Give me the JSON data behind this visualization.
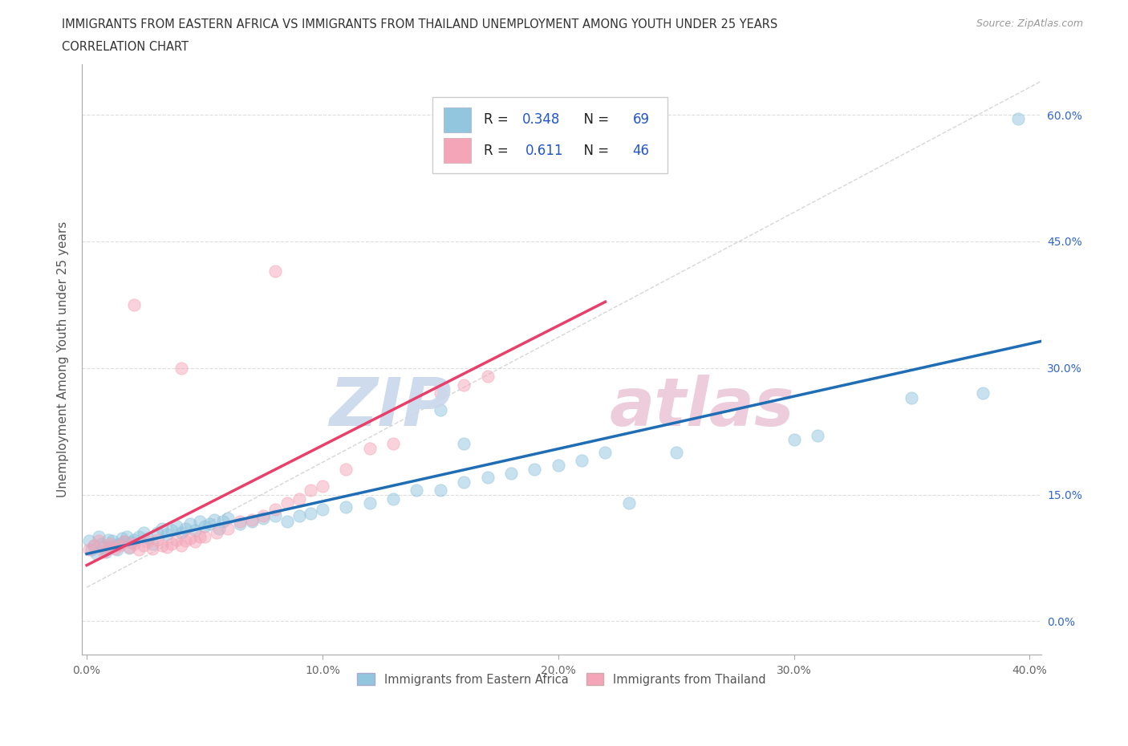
{
  "title_line1": "IMMIGRANTS FROM EASTERN AFRICA VS IMMIGRANTS FROM THAILAND UNEMPLOYMENT AMONG YOUTH UNDER 25 YEARS",
  "title_line2": "CORRELATION CHART",
  "source_text": "Source: ZipAtlas.com",
  "ylabel": "Unemployment Among Youth under 25 years",
  "xlim": [
    -0.002,
    0.405
  ],
  "ylim": [
    -0.04,
    0.66
  ],
  "xticks": [
    0.0,
    0.1,
    0.2,
    0.3,
    0.4
  ],
  "yticks": [
    0.0,
    0.15,
    0.3,
    0.45,
    0.6
  ],
  "xtick_labels": [
    "0.0%",
    "10.0%",
    "20.0%",
    "30.0%",
    "40.0%"
  ],
  "ytick_labels": [
    "0.0%",
    "15.0%",
    "30.0%",
    "45.0%",
    "60.0%"
  ],
  "blue_color": "#92c5de",
  "pink_color": "#f4a6b8",
  "blue_line_color": "#1f6db5",
  "pink_line_color": "#e8406a",
  "diag_color": "#cccccc",
  "R_blue": 0.348,
  "N_blue": 69,
  "R_pink": 0.611,
  "N_pink": 46,
  "watermark_zip_color": "#c8d8ec",
  "watermark_atlas_color": "#ecc8d8",
  "legend_label_blue": "Immigrants from Eastern Africa",
  "legend_label_pink": "Immigrants from Thailand",
  "blue_x": [
    0.001,
    0.002,
    0.003,
    0.004,
    0.005,
    0.006,
    0.007,
    0.008,
    0.009,
    0.01,
    0.011,
    0.012,
    0.013,
    0.014,
    0.015,
    0.016,
    0.017,
    0.018,
    0.019,
    0.02,
    0.022,
    0.024,
    0.026,
    0.028,
    0.03,
    0.032,
    0.034,
    0.036,
    0.038,
    0.04,
    0.042,
    0.044,
    0.046,
    0.048,
    0.05,
    0.052,
    0.054,
    0.056,
    0.058,
    0.06,
    0.065,
    0.07,
    0.075,
    0.08,
    0.085,
    0.09,
    0.095,
    0.1,
    0.11,
    0.12,
    0.13,
    0.14,
    0.15,
    0.16,
    0.17,
    0.18,
    0.19,
    0.2,
    0.21,
    0.22,
    0.15,
    0.16,
    0.25,
    0.3,
    0.31,
    0.35,
    0.38,
    0.395,
    0.23
  ],
  "blue_y": [
    0.095,
    0.085,
    0.09,
    0.08,
    0.1,
    0.092,
    0.088,
    0.082,
    0.096,
    0.088,
    0.095,
    0.09,
    0.085,
    0.092,
    0.098,
    0.094,
    0.1,
    0.087,
    0.093,
    0.096,
    0.1,
    0.105,
    0.098,
    0.092,
    0.105,
    0.11,
    0.103,
    0.108,
    0.112,
    0.105,
    0.11,
    0.115,
    0.108,
    0.118,
    0.112,
    0.115,
    0.12,
    0.11,
    0.118,
    0.122,
    0.115,
    0.118,
    0.122,
    0.125,
    0.118,
    0.125,
    0.128,
    0.132,
    0.135,
    0.14,
    0.145,
    0.155,
    0.155,
    0.165,
    0.17,
    0.175,
    0.18,
    0.185,
    0.19,
    0.2,
    0.25,
    0.21,
    0.2,
    0.215,
    0.22,
    0.265,
    0.27,
    0.595,
    0.14
  ],
  "pink_x": [
    0.001,
    0.003,
    0.005,
    0.007,
    0.009,
    0.01,
    0.012,
    0.014,
    0.016,
    0.018,
    0.02,
    0.022,
    0.024,
    0.026,
    0.028,
    0.03,
    0.032,
    0.034,
    0.036,
    0.038,
    0.04,
    0.042,
    0.044,
    0.046,
    0.048,
    0.05,
    0.055,
    0.06,
    0.065,
    0.07,
    0.075,
    0.08,
    0.085,
    0.09,
    0.095,
    0.1,
    0.11,
    0.12,
    0.13,
    0.15,
    0.16,
    0.17,
    0.02,
    0.04,
    0.08,
    0.2
  ],
  "pink_y": [
    0.085,
    0.09,
    0.095,
    0.082,
    0.088,
    0.092,
    0.086,
    0.09,
    0.094,
    0.088,
    0.092,
    0.085,
    0.09,
    0.094,
    0.086,
    0.096,
    0.09,
    0.088,
    0.092,
    0.096,
    0.09,
    0.095,
    0.098,
    0.094,
    0.1,
    0.1,
    0.105,
    0.11,
    0.118,
    0.12,
    0.125,
    0.132,
    0.14,
    0.145,
    0.155,
    0.16,
    0.18,
    0.205,
    0.21,
    0.27,
    0.28,
    0.29,
    0.375,
    0.3,
    0.415,
    0.54
  ]
}
